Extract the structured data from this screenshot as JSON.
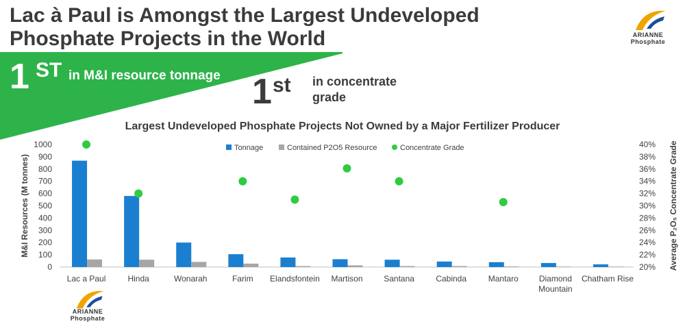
{
  "title_line1": "Lac à Paul is Amongst the Largest Undeveloped",
  "title_line2": "Phosphate Projects in the World",
  "logo": {
    "line1": "ARIANNE",
    "line2": "Phosphate"
  },
  "highlight1": {
    "number": "1",
    "suffix": "ST",
    "text": "in M&I resource tonnage"
  },
  "highlight2": {
    "number": "1",
    "suffix": "st",
    "text_line1": "in concentrate",
    "text_line2": "grade"
  },
  "colors": {
    "banner": "#2db34a",
    "tonnage": "#1a7fd0",
    "contained": "#a6a6a6",
    "grade": "#2ecc40",
    "logo_orange": "#f0a400"
  },
  "chart_data": {
    "type": "bar",
    "title": "Largest Undeveloped Phosphate Projects Not Owned by a Major Fertilizer Producer",
    "ylabel": "M&I Resources (M tonnes)",
    "y2label": "Average P₂O₅ Concentrate Grade",
    "ylim": [
      0,
      1000
    ],
    "y2lim": [
      20,
      40
    ],
    "yticks": [
      "0",
      "100",
      "200",
      "300",
      "400",
      "500",
      "600",
      "700",
      "800",
      "900",
      "1000"
    ],
    "y2ticks": [
      "20%",
      "22%",
      "24%",
      "26%",
      "28%",
      "30%",
      "32%",
      "34%",
      "36%",
      "38%",
      "40%"
    ],
    "legend_position": "top",
    "categories": [
      "Lac a Paul",
      "Hinda",
      "Wonarah",
      "Farim",
      "Elandsfontein",
      "Martison",
      "Santana",
      "Cabinda",
      "Mantaro",
      "Diamond Mountain",
      "Chatham Rise"
    ],
    "category_lines": [
      [
        "Lac a Paul"
      ],
      [
        "Hinda"
      ],
      [
        "Wonarah"
      ],
      [
        "Farim"
      ],
      [
        "Elandsfontein"
      ],
      [
        "Martison"
      ],
      [
        "Santana"
      ],
      [
        "Cabinda"
      ],
      [
        "Mantaro"
      ],
      [
        "Diamond",
        "Mountain"
      ],
      [
        "Chatham Rise"
      ]
    ],
    "series": [
      {
        "name": "Tonnage",
        "type": "bar",
        "axis": "left",
        "values": [
          868,
          580,
          200,
          105,
          78,
          64,
          60,
          45,
          40,
          33,
          22
        ]
      },
      {
        "name": "Contained P2O5 Resource",
        "type": "bar",
        "axis": "left",
        "values": [
          62,
          60,
          42,
          28,
          8,
          14,
          8,
          8,
          5,
          4,
          4
        ]
      },
      {
        "name": "Concentrate Grade",
        "type": "scatter",
        "axis": "right",
        "values": [
          40,
          32,
          null,
          34,
          31,
          36.1,
          34,
          null,
          30.6,
          null,
          null
        ]
      }
    ]
  }
}
